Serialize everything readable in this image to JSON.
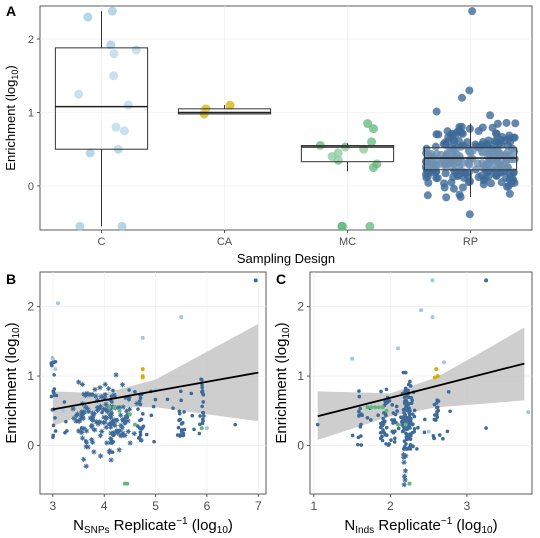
{
  "colors": {
    "C": "#9ecae1",
    "CA": "#d4b106",
    "MC": "#5fb87a",
    "RP": "#3d6a99",
    "fit_line": "#000000",
    "ci_band": "#bdbdbd"
  },
  "chart_data": [
    {
      "panel": "A",
      "type": "box",
      "xlabel": "Sampling Design",
      "ylabel_main": "Enrichment (log",
      "ylabel_sub": "10",
      "ylabel_end": ")",
      "categories": [
        "C",
        "CA",
        "MC",
        "RP"
      ],
      "ylim": [
        -0.6,
        2.45
      ],
      "yticks": [
        "0",
        "1",
        "2"
      ],
      "boxes": [
        {
          "category": "C",
          "q1": 0.5,
          "median": 1.08,
          "q3": 1.88,
          "whisker_low": -0.55,
          "whisker_high": 2.38
        },
        {
          "category": "CA",
          "q1": 0.98,
          "median": 1.0,
          "q3": 1.05,
          "whisker_low": 0.98,
          "whisker_high": 1.1
        },
        {
          "category": "MC",
          "q1": 0.33,
          "median": 0.53,
          "q3": 0.55,
          "whisker_low": 0.2,
          "whisker_high": 0.58
        },
        {
          "category": "RP",
          "q1": 0.22,
          "median": 0.38,
          "q3": 0.52,
          "whisker_low": -0.15,
          "whisker_high": 0.85
        }
      ],
      "points": {
        "C": [
          2.38,
          2.3,
          1.92,
          1.85,
          1.8,
          1.5,
          1.25,
          1.1,
          0.8,
          0.75,
          0.5,
          0.45,
          -0.55,
          -0.55
        ],
        "CA": [
          1.1,
          1.05,
          0.98
        ],
        "MC": [
          0.85,
          0.78,
          0.6,
          0.55,
          0.53,
          0.5,
          0.45,
          0.4,
          0.35,
          0.3,
          0.25,
          -0.55,
          -0.55,
          -0.55
        ]
      }
    },
    {
      "panel": "B",
      "type": "scatter",
      "xlabel_pre": "N",
      "xlabel_sub": "SNPs",
      "xlabel_post": " Replicate",
      "xlabel_sup": "−1",
      "xlabel_end": " (log",
      "xlabel_sub2": "10",
      "xlabel_close": ")",
      "ylabel_main": "Enrichment (log",
      "ylabel_sub": "10",
      "ylabel_end": ")",
      "xlim": [
        2.75,
        7.15
      ],
      "ylim": [
        -0.7,
        2.5
      ],
      "xticks": [
        "3",
        "4",
        "5",
        "6",
        "7"
      ],
      "yticks": [
        "0",
        "1",
        "2"
      ],
      "fit": {
        "x": [
          3.0,
          7.0
        ],
        "y": [
          0.52,
          1.05
        ]
      },
      "ci_upper": [
        [
          3.0,
          0.78
        ],
        [
          4.0,
          0.75
        ],
        [
          5.0,
          0.95
        ],
        [
          6.0,
          1.35
        ],
        [
          7.0,
          1.75
        ]
      ],
      "ci_lower": [
        [
          3.0,
          0.28
        ],
        [
          4.0,
          0.55
        ],
        [
          5.0,
          0.55
        ],
        [
          6.0,
          0.45
        ],
        [
          7.0,
          0.35
        ]
      ]
    },
    {
      "panel": "C",
      "type": "scatter",
      "xlabel_pre": "N",
      "xlabel_sub": "Inds",
      "xlabel_post": " Replicate",
      "xlabel_sup": "−1",
      "xlabel_end": " (log",
      "xlabel_sub2": "10",
      "xlabel_close": ")",
      "ylabel_main": "Enrichment (log",
      "ylabel_sub": "10",
      "ylabel_end": ")",
      "xlim": [
        0.95,
        3.85
      ],
      "ylim": [
        -0.7,
        2.5
      ],
      "xticks": [
        "1",
        "2",
        "3"
      ],
      "yticks": [
        "0",
        "1",
        "2"
      ],
      "fit": {
        "x": [
          1.05,
          3.75
        ],
        "y": [
          0.42,
          1.18
        ]
      },
      "ci_upper": [
        [
          1.05,
          0.78
        ],
        [
          2.0,
          0.75
        ],
        [
          2.6,
          0.98
        ],
        [
          3.2,
          1.35
        ],
        [
          3.75,
          1.7
        ]
      ],
      "ci_lower": [
        [
          1.05,
          0.08
        ],
        [
          2.0,
          0.42
        ],
        [
          2.6,
          0.55
        ],
        [
          3.2,
          0.6
        ],
        [
          3.75,
          0.65
        ]
      ]
    }
  ]
}
